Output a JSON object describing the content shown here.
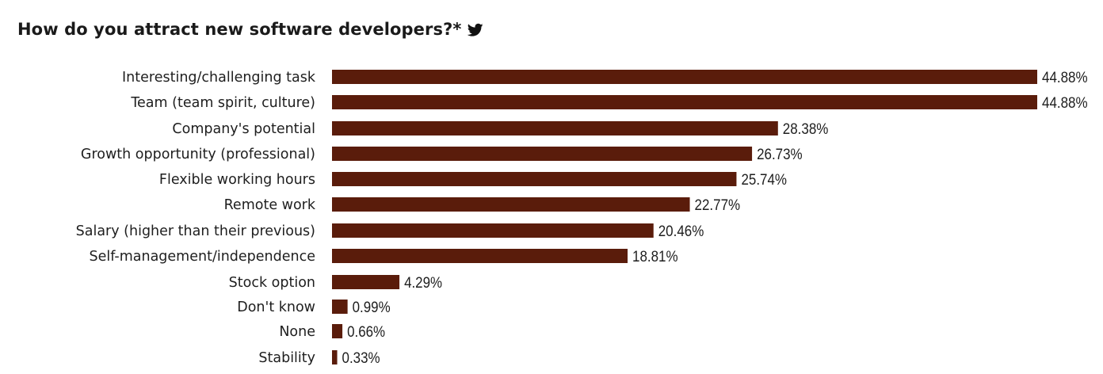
{
  "header": {
    "title": "How do you attract new software developers?*",
    "share_icon": "twitter-bird-icon"
  },
  "colors": {
    "bar": "#5a1c0b",
    "text": "#1e1e1e"
  },
  "chart_data": {
    "type": "bar",
    "orientation": "horizontal",
    "title": "How do you attract new software developers?*",
    "xlabel": "",
    "ylabel": "",
    "grid": false,
    "legend": "none",
    "xlim": [
      0,
      44.88
    ],
    "categories": [
      "Interesting/challenging task",
      "Team (team spirit, culture)",
      "Company's potential",
      "Growth opportunity (professional)",
      "Flexible working hours",
      "Remote work",
      "Salary (higher than their previous)",
      "Self-management/independence",
      "Stock option",
      "Don't know",
      "None",
      "Stability"
    ],
    "values": [
      44.88,
      44.88,
      28.38,
      26.73,
      25.74,
      22.77,
      20.46,
      18.81,
      4.29,
      0.99,
      0.66,
      0.33
    ],
    "value_labels": [
      "44.88%",
      "44.88%",
      "28.38%",
      "26.73%",
      "25.74%",
      "22.77%",
      "20.46%",
      "18.81%",
      "4.29%",
      "0.99%",
      "0.66%",
      "0.33%"
    ]
  }
}
